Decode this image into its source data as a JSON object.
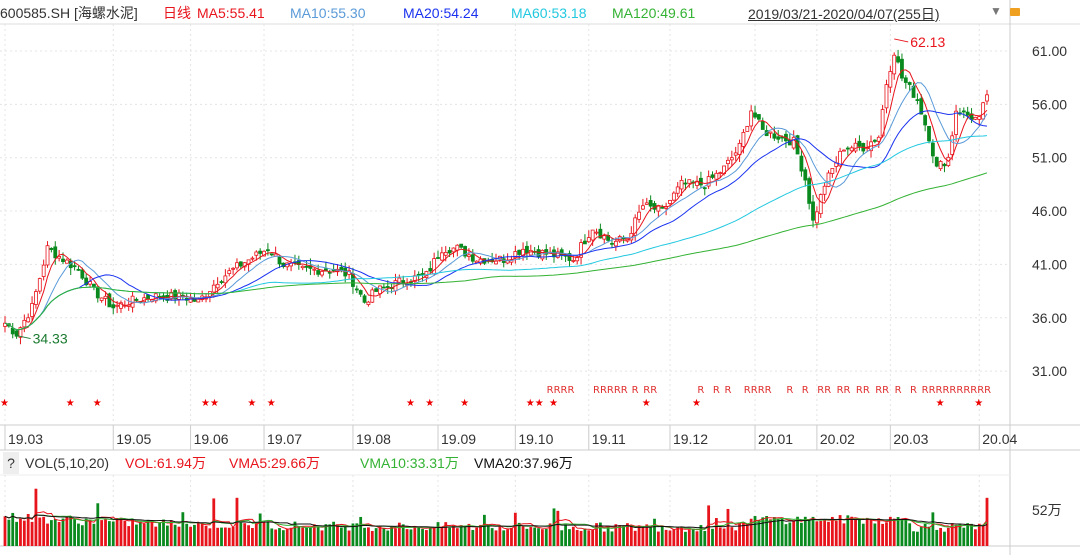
{
  "header": {
    "symbol": "600585.SH [海螺水泥]",
    "period": "日线",
    "ma5": "MA5:55.41",
    "ma10": "MA10:55.30",
    "ma20": "MA20:54.24",
    "ma60": "MA60:53.18",
    "ma120": "MA120:49.61",
    "range": "2019/03/21-2020/04/07(255日)"
  },
  "volume_header": {
    "help": "?",
    "name": "VOL(5,10,20)",
    "vol": "VOL:61.94万",
    "vma5": "VMA5:29.66万",
    "vma10": "VMA10:33.31万",
    "vma20": "VMA20:37.96万"
  },
  "colors": {
    "up": "#e8141c",
    "down": "#0a8a1e",
    "ma5": "#e8141c",
    "ma10": "#5a9ad8",
    "ma20": "#1a32f0",
    "ma60": "#22c8e0",
    "ma120": "#33b233"
  },
  "chart_data": {
    "type": "candlestick",
    "days": 255,
    "close_anchors": [
      [
        0,
        35.5
      ],
      [
        3,
        34.5
      ],
      [
        7,
        37
      ],
      [
        11,
        42.5
      ],
      [
        15,
        41.5
      ],
      [
        19,
        40.5
      ],
      [
        23,
        38.5
      ],
      [
        28,
        37
      ],
      [
        32,
        37.5
      ],
      [
        38,
        38
      ],
      [
        46,
        38
      ],
      [
        50,
        37.5
      ],
      [
        55,
        39.5
      ],
      [
        61,
        41
      ],
      [
        68,
        42.5
      ],
      [
        72,
        41
      ],
      [
        77,
        40.5
      ],
      [
        85,
        40.5
      ],
      [
        89,
        40
      ],
      [
        93,
        37.5
      ],
      [
        96,
        38.5
      ],
      [
        103,
        39.5
      ],
      [
        109,
        40
      ],
      [
        113,
        42.5
      ],
      [
        117,
        42.5
      ],
      [
        122,
        41.5
      ],
      [
        129,
        41.5
      ],
      [
        134,
        42.5
      ],
      [
        140,
        42
      ],
      [
        147,
        41.5
      ],
      [
        152,
        44.5
      ],
      [
        157,
        43
      ],
      [
        161,
        43.5
      ],
      [
        165,
        46.5
      ],
      [
        170,
        46
      ],
      [
        175,
        48.5
      ],
      [
        181,
        48.5
      ],
      [
        186,
        50
      ],
      [
        190,
        52
      ],
      [
        193,
        55.5
      ],
      [
        196,
        53.5
      ],
      [
        204,
        52.5
      ],
      [
        207,
        49
      ],
      [
        209,
        45
      ],
      [
        212,
        48.5
      ],
      [
        217,
        52
      ],
      [
        222,
        52
      ],
      [
        226,
        53
      ],
      [
        228,
        58
      ],
      [
        230,
        61
      ],
      [
        232,
        58.5
      ],
      [
        236,
        56.5
      ],
      [
        239,
        53
      ],
      [
        241,
        50
      ],
      [
        244,
        51
      ],
      [
        246,
        55.5
      ],
      [
        249,
        55
      ],
      [
        252,
        54.5
      ],
      [
        254,
        57
      ]
    ],
    "price_ylim": [
      28,
      64
    ],
    "price_ticks": [
      "61.00",
      "56.00",
      "51.00",
      "46.00",
      "41.00",
      "36.00",
      "31.00"
    ],
    "x_ticks": [
      [
        "19.03",
        0
      ],
      [
        "19.05",
        28
      ],
      [
        "19.06",
        48
      ],
      [
        "19.07",
        67
      ],
      [
        "19.08",
        90
      ],
      [
        "19.09",
        112
      ],
      [
        "19.10",
        132
      ],
      [
        "19.11",
        151
      ],
      [
        "19.12",
        172
      ],
      [
        "20.01",
        194
      ],
      [
        "20.02",
        210
      ],
      [
        "20.03",
        229
      ],
      [
        "20.04",
        252
      ]
    ],
    "annotations": [
      {
        "text": "62.13",
        "day": 230,
        "value": 62.13
      },
      {
        "text": "34.33",
        "day": 3,
        "value": 34.33
      }
    ],
    "star_days": [
      0,
      17,
      24,
      52,
      55,
      64,
      69,
      105,
      110,
      119,
      136,
      138,
      142,
      166,
      179,
      242,
      252
    ],
    "r_days": [
      141,
      142,
      143,
      144,
      153,
      154,
      156,
      157,
      160,
      163,
      166,
      167,
      180,
      184,
      187,
      192,
      193,
      194,
      196,
      203,
      207,
      211,
      212,
      216,
      217,
      221,
      222,
      226,
      227,
      231,
      235,
      238,
      240,
      241,
      242,
      243,
      244,
      245,
      247,
      249,
      252
    ],
    "volume_unit_tick": "52万",
    "volume_last": 61.94,
    "volume_ylim": [
      0,
      90
    ]
  }
}
